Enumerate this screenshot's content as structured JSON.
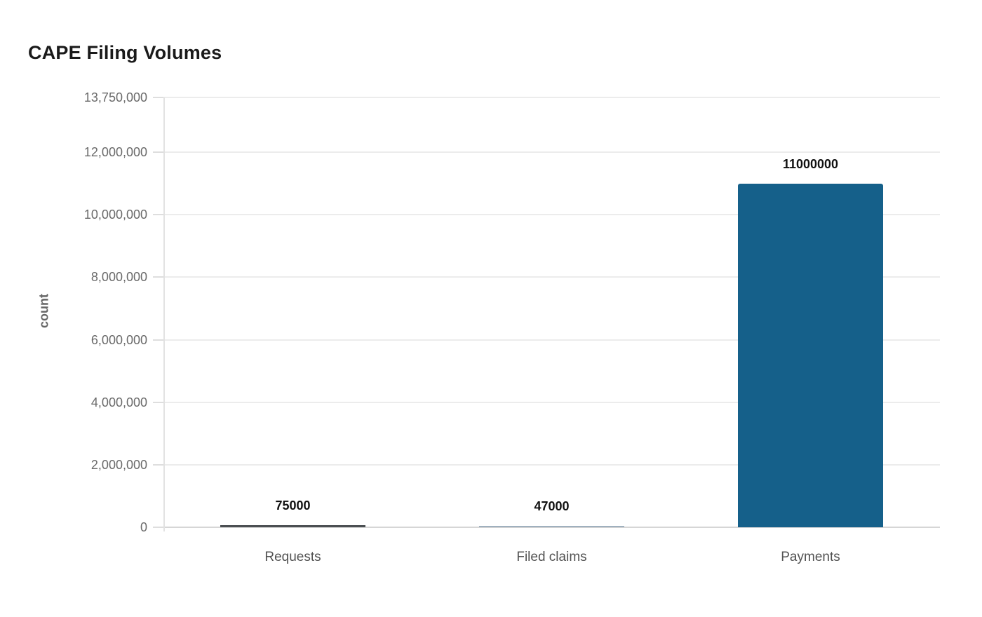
{
  "chart_data": {
    "type": "bar",
    "title": "CAPE Filing Volumes",
    "ylabel": "count",
    "xlabel": "",
    "categories": [
      "Requests",
      "Filed claims",
      "Payments"
    ],
    "values": [
      75000,
      47000,
      11000000
    ],
    "bar_value_labels": [
      "75000",
      "47000",
      "11000000"
    ],
    "bar_colors": [
      "#4b4f52",
      "#9fb0be",
      "#15608a"
    ],
    "ylim": [
      0,
      13750000
    ],
    "yticks": [
      {
        "value": 0,
        "label": "0"
      },
      {
        "value": 2000000,
        "label": "2,000,000"
      },
      {
        "value": 4000000,
        "label": "4,000,000"
      },
      {
        "value": 6000000,
        "label": "6,000,000"
      },
      {
        "value": 8000000,
        "label": "8,000,000"
      },
      {
        "value": 10000000,
        "label": "10,000,000"
      },
      {
        "value": 12000000,
        "label": "12,000,000"
      },
      {
        "value": 13750000,
        "label": "13,750,000"
      }
    ],
    "grid": true,
    "legend": false,
    "colors": {
      "grid_line": "#ececec",
      "zero_line": "#d6d6d6",
      "axis_line": "#e2e2e2",
      "tick_label": "#6a6a6a",
      "category_label": "#525252",
      "value_label": "#111111",
      "title": "#1a1a1a",
      "ylabel": "#666666",
      "background": "#ffffff"
    }
  }
}
